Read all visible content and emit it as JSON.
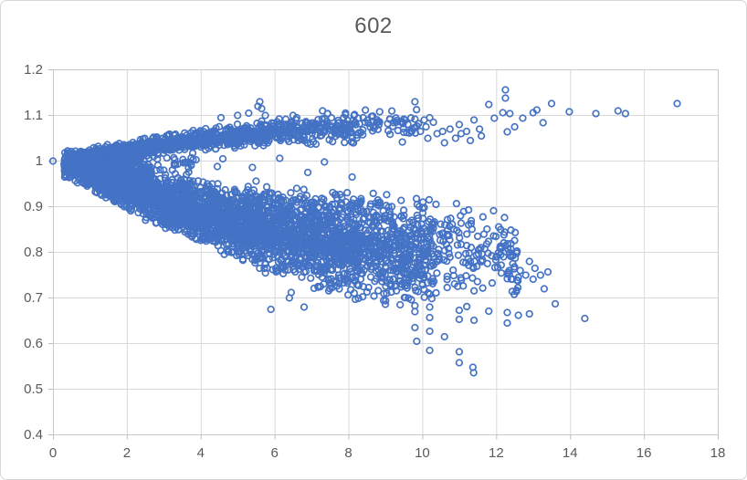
{
  "chart": {
    "title": "602",
    "colors": {
      "marker": "#4472C4",
      "gridline": "#D9D9D9",
      "plot_border": "#C9C9C9",
      "axis_line": "#BFBFBF",
      "tick_mark": "#BFBFBF",
      "text": "#595959",
      "background": "#FFFFFF"
    }
  },
  "chart_data": {
    "type": "scatter",
    "title": "602",
    "xlabel": "",
    "ylabel": "",
    "xlim": [
      0,
      18
    ],
    "ylim": [
      0.4,
      1.2
    ],
    "x_tick_values": [
      0,
      2,
      4,
      6,
      8,
      10,
      12,
      14,
      16,
      18
    ],
    "x_tick_labels": [
      "0",
      "2",
      "4",
      "6",
      "8",
      "10",
      "12",
      "14",
      "16",
      "18"
    ],
    "y_tick_values": [
      1.2,
      1.1,
      1.0,
      0.9,
      0.8,
      0.7,
      0.6,
      0.5,
      0.4
    ],
    "y_tick_labels": [
      "1.2",
      "1.1",
      "1",
      "0.9",
      "0.8",
      "0.7",
      "0.6",
      "0.5",
      "0.4"
    ],
    "grid": true,
    "legend": "none",
    "marker": {
      "shape": "open-circle",
      "color": "#4472C4",
      "radius_px": 3.3,
      "stroke_px": 1.7
    },
    "pattern_description": "Dense cloud of ~5000 open-circle points starting at (0,1.0), fanning into two branches: an upper branch rising to y≈1.05-1.10 (dense to x≈6, sparse points out to x≈17 at y≈1.04-1.16) and a thick lower wedge descending to y≈0.72-0.95 (dense from x≈1.5 to x≈10, tail to x≈13.5), with low outliers down to y≈0.54 near x≈11.4.",
    "anchor_points": [
      [
        0,
        1.0
      ]
    ],
    "high_upper_points": [
      [
        4.55,
        1.095
      ],
      [
        5.0,
        1.1
      ],
      [
        5.3,
        1.105
      ],
      [
        5.55,
        1.12
      ],
      [
        5.6,
        1.13
      ],
      [
        5.65,
        1.115
      ],
      [
        5.75,
        1.1
      ],
      [
        6.5,
        1.1
      ],
      [
        6.6,
        1.095
      ],
      [
        7.3,
        1.11
      ],
      [
        8.4,
        1.095
      ],
      [
        8.45,
        1.085
      ]
    ],
    "upper_right_points": [
      [
        9.8,
        1.13
      ],
      [
        9.95,
        1.065
      ],
      [
        10.05,
        1.09
      ],
      [
        10.1,
        1.075
      ],
      [
        10.15,
        1.05
      ],
      [
        10.2,
        1.095
      ],
      [
        10.3,
        1.085
      ],
      [
        10.4,
        1.06
      ],
      [
        10.55,
        1.065
      ],
      [
        10.6,
        1.04
      ],
      [
        10.75,
        1.07
      ],
      [
        10.9,
        1.05
      ],
      [
        11.0,
        1.08
      ],
      [
        11.05,
        1.06
      ],
      [
        11.2,
        1.065
      ],
      [
        11.3,
        1.045
      ],
      [
        11.4,
        1.09
      ],
      [
        11.55,
        1.07
      ],
      [
        11.6,
        1.055
      ],
      [
        11.8,
        1.124
      ],
      [
        11.95,
        1.094
      ],
      [
        12.18,
        1.106
      ],
      [
        12.25,
        1.156
      ],
      [
        12.25,
        1.138
      ],
      [
        12.3,
        1.064
      ],
      [
        12.37,
        1.104
      ],
      [
        12.5,
        1.075
      ],
      [
        12.72,
        1.094
      ],
      [
        13.0,
        1.106
      ],
      [
        13.1,
        1.112
      ],
      [
        13.27,
        1.084
      ],
      [
        13.5,
        1.126
      ],
      [
        13.98,
        1.108
      ],
      [
        14.7,
        1.104
      ],
      [
        15.3,
        1.11
      ],
      [
        15.5,
        1.104
      ],
      [
        16.9,
        1.126
      ]
    ],
    "notch_points": [
      [
        4.45,
        0.988
      ],
      [
        4.6,
        1.005
      ],
      [
        5.4,
        0.986
      ],
      [
        6.14,
        1.006
      ],
      [
        5.5,
        0.956
      ],
      [
        6.6,
        0.94
      ],
      [
        6.9,
        0.975
      ],
      [
        7.35,
        0.998
      ],
      [
        7.5,
        0.9
      ],
      [
        8.1,
        0.965
      ]
    ],
    "lower_tail_points": [
      [
        12.2,
        0.79
      ],
      [
        12.35,
        0.76
      ],
      [
        12.45,
        0.775
      ],
      [
        12.55,
        0.717
      ],
      [
        12.6,
        0.745
      ],
      [
        12.65,
        0.76
      ],
      [
        12.8,
        0.75
      ],
      [
        12.9,
        0.78
      ],
      [
        13.0,
        0.741
      ],
      [
        13.05,
        0.765
      ],
      [
        13.2,
        0.75
      ],
      [
        13.3,
        0.72
      ],
      [
        13.4,
        0.757
      ]
    ],
    "lower_outlier_points": [
      [
        5.9,
        0.675
      ],
      [
        6.4,
        0.7
      ],
      [
        6.45,
        0.712
      ],
      [
        6.8,
        0.68
      ],
      [
        9.0,
        0.686
      ],
      [
        9.4,
        0.685
      ],
      [
        9.8,
        0.683
      ],
      [
        9.8,
        0.67
      ],
      [
        9.8,
        0.635
      ],
      [
        9.85,
        0.605
      ],
      [
        10.2,
        0.68
      ],
      [
        10.2,
        0.657
      ],
      [
        10.2,
        0.627
      ],
      [
        10.2,
        0.585
      ],
      [
        10.6,
        0.615
      ],
      [
        11.0,
        0.673
      ],
      [
        11.0,
        0.653
      ],
      [
        11.0,
        0.582
      ],
      [
        11.0,
        0.558
      ],
      [
        11.4,
        0.651
      ],
      [
        11.37,
        0.548
      ],
      [
        11.39,
        0.536
      ],
      [
        11.8,
        0.671
      ],
      [
        12.3,
        0.668
      ],
      [
        12.3,
        0.645
      ],
      [
        12.6,
        0.662
      ],
      [
        12.9,
        0.665
      ],
      [
        13.6,
        0.687
      ],
      [
        14.4,
        0.655
      ]
    ],
    "cloud_model": {
      "seed": 987654,
      "capsule": {
        "n": 80,
        "x_range": [
          0.3,
          0.5
        ],
        "y_center": 0.992,
        "y_half": 0.036
      },
      "bridge": {
        "n": 600,
        "x_break": [
          0.5,
          1.0,
          2.6,
          3.9
        ],
        "x_cum": [
          0,
          0.28,
          0.88,
          1.0
        ],
        "pad_low": 0.3,
        "pad_high": 0.008
      },
      "lower": {
        "n": 3300,
        "x_break": [
          0.55,
          1.6,
          8.3,
          10.3,
          12.6
        ],
        "x_cum": [
          0,
          0.09,
          0.8,
          0.955,
          1.0
        ],
        "center_poly": [
          1.006,
          -0.03625,
          0.0015625
        ],
        "half_base": 0.022,
        "half_slope": 0.0125,
        "half_cap": 0.118,
        "spread": 1.05
      },
      "upper": {
        "n": 980,
        "x_break": [
          0.45,
          1.3,
          6.3,
          8.2,
          9.9
        ],
        "x_cum": [
          0,
          0.12,
          0.78,
          0.93,
          1.0
        ],
        "center_poly": [
          1.0,
          0.013583,
          -0.000542
        ],
        "sigma_base": 0.006,
        "sigma_slope": 0.0012,
        "clip_sigma": 2.2
      }
    }
  }
}
